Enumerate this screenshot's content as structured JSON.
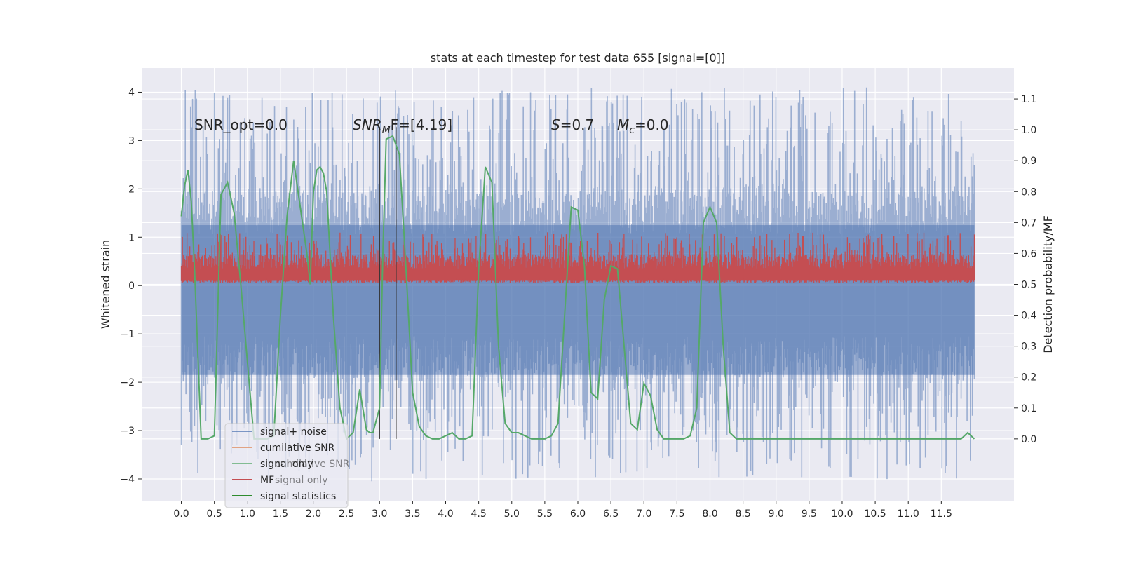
{
  "chart_data": {
    "type": "line",
    "title": "stats at each timestep for test data 655 [signal=[0]]",
    "xlabel": "",
    "ylabel": "Whitened strain",
    "y2label": "Detection probability/MF",
    "xlim": [
      -0.6,
      12.6
    ],
    "ylim": [
      -4.45,
      4.5
    ],
    "y2lim": [
      -0.2,
      1.2
    ],
    "x_ticks": [
      0.0,
      0.5,
      1.0,
      1.5,
      2.0,
      2.5,
      3.0,
      3.5,
      4.0,
      4.5,
      5.0,
      5.5,
      6.0,
      6.5,
      7.0,
      7.5,
      8.0,
      8.5,
      9.0,
      9.5,
      10.0,
      10.5,
      11.0,
      11.5
    ],
    "x_tick_labels": [
      "0.0",
      "0.5",
      "1.0",
      "1.5",
      "2.0",
      "2.5",
      "3.0",
      "3.5",
      "4.0",
      "4.5",
      "5.0",
      "5.5",
      "6.0",
      "6.5",
      "7.0",
      "7.5",
      "8.0",
      "8.5",
      "9.0",
      "9.5",
      "10.0",
      "10.5",
      "11.0",
      "11.5"
    ],
    "y_ticks": [
      4,
      3,
      2,
      1,
      0,
      -1,
      -2,
      -3,
      -4
    ],
    "y_tick_labels": [
      "4",
      "3",
      "2",
      "1",
      "0",
      "−1",
      "−2",
      "−3",
      "−4"
    ],
    "y2_ticks": [
      1.1,
      1.0,
      0.9,
      0.8,
      0.7,
      0.6,
      0.5,
      0.4,
      0.3,
      0.2,
      0.1,
      0.0
    ],
    "y2_tick_labels": [
      "1.1",
      "1.0",
      "0.9",
      "0.8",
      "0.7",
      "0.6",
      "0.5",
      "0.4",
      "0.3",
      "0.2",
      "0.1",
      "0.0"
    ],
    "grid": true,
    "annotations": {
      "snr_opt": "SNR_opt=0.0",
      "snr_mf_main": "SNR",
      "snr_mf_sub": "M",
      "snr_mf_rest": "F=[4.19]",
      "s_italic": "S",
      "s_rest": "=0.7",
      "mc_main": "M",
      "mc_sub": "c",
      "mc_rest": "=0.0"
    },
    "vlines": [
      3.0,
      3.25
    ],
    "series": [
      {
        "name": "signal+ noise",
        "color": "#4c72b0",
        "note": "dense noise, range roughly -3.9 to 4.1, x 0 to 12",
        "x_range": [
          0.0,
          12.0
        ],
        "baseline_amplitude": 1.9,
        "peak_max": 4.1,
        "trough_min": -4.05
      },
      {
        "name": "cumilative SNR",
        "color": "#dd8452",
        "values": []
      },
      {
        "name": "signal only",
        "color": "#55a868",
        "values": []
      },
      {
        "name": "MF",
        "color": "#c44e52",
        "note": "dense series between about 0.05 and 1.1 on left axis, x 0 to 12",
        "x_range": [
          0.0,
          12.0
        ],
        "low": 0.05,
        "high": 1.1
      },
      {
        "name": "signal statistics",
        "color": "#55a868",
        "axis": "right",
        "x": [
          0.0,
          0.05,
          0.1,
          0.15,
          0.2,
          0.3,
          0.4,
          0.5,
          0.55,
          0.6,
          0.7,
          0.8,
          0.9,
          1.0,
          1.1,
          1.2,
          1.3,
          1.4,
          1.5,
          1.6,
          1.7,
          1.8,
          1.9,
          1.95,
          2.0,
          2.05,
          2.1,
          2.15,
          2.2,
          2.3,
          2.4,
          2.5,
          2.6,
          2.7,
          2.8,
          2.85,
          2.9,
          3.0,
          3.05,
          3.1,
          3.2,
          3.3,
          3.4,
          3.5,
          3.6,
          3.7,
          3.8,
          3.9,
          4.0,
          4.1,
          4.2,
          4.3,
          4.4,
          4.5,
          4.6,
          4.7,
          4.8,
          4.9,
          5.0,
          5.1,
          5.2,
          5.3,
          5.4,
          5.5,
          5.6,
          5.7,
          5.8,
          5.9,
          6.0,
          6.1,
          6.2,
          6.3,
          6.4,
          6.5,
          6.6,
          6.7,
          6.8,
          6.9,
          7.0,
          7.1,
          7.2,
          7.3,
          7.4,
          7.5,
          7.6,
          7.7,
          7.8,
          7.9,
          8.0,
          8.1,
          8.2,
          8.3,
          8.4,
          8.5,
          9.0,
          9.5,
          10.0,
          10.5,
          11.0,
          11.5,
          11.8,
          11.9,
          12.0
        ],
        "values": [
          0.72,
          0.82,
          0.87,
          0.77,
          0.55,
          0.0,
          0.0,
          0.01,
          0.4,
          0.79,
          0.83,
          0.73,
          0.5,
          0.25,
          0.0,
          0.0,
          0.0,
          0.01,
          0.4,
          0.72,
          0.9,
          0.75,
          0.6,
          0.5,
          0.8,
          0.87,
          0.88,
          0.86,
          0.8,
          0.4,
          0.1,
          0.0,
          0.02,
          0.16,
          0.03,
          0.02,
          0.02,
          0.1,
          0.6,
          0.97,
          0.98,
          0.92,
          0.55,
          0.15,
          0.04,
          0.01,
          0.0,
          0.0,
          0.01,
          0.02,
          0.0,
          0.0,
          0.01,
          0.55,
          0.88,
          0.83,
          0.3,
          0.05,
          0.02,
          0.02,
          0.01,
          0.0,
          0.0,
          0.0,
          0.01,
          0.05,
          0.4,
          0.75,
          0.74,
          0.56,
          0.15,
          0.13,
          0.45,
          0.56,
          0.55,
          0.3,
          0.05,
          0.03,
          0.18,
          0.14,
          0.03,
          0.0,
          0.0,
          0.0,
          0.0,
          0.01,
          0.1,
          0.7,
          0.75,
          0.7,
          0.3,
          0.02,
          0.0,
          0.0,
          0.0,
          0.0,
          0.0,
          0.0,
          0.0,
          0.0,
          0.0,
          0.02,
          0.0
        ]
      }
    ],
    "legend": {
      "placement": "lower-left",
      "entries": [
        {
          "label": "signal+ noise",
          "color": "#4c72b0"
        },
        {
          "label": "cumilative SNR",
          "color": "#dd8452"
        },
        {
          "label": "signal only",
          "color": "#55a868"
        },
        {
          "label": "MF",
          "color": "#c44e52"
        },
        {
          "label": "signal statistics",
          "color": "#2e8b2e"
        }
      ],
      "ghost_labels": [
        "cumilative SNR",
        "signal only"
      ]
    }
  }
}
